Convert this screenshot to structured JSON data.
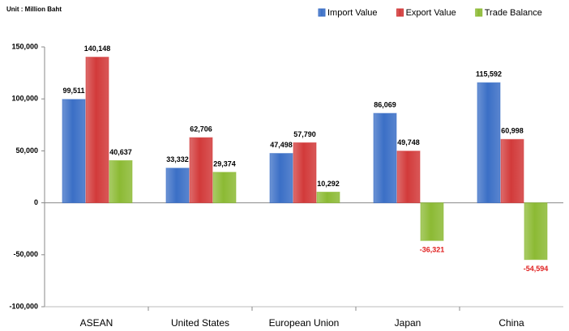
{
  "chart_data": {
    "type": "bar",
    "subtitle": "Unit : Million  Baht",
    "categories": [
      "ASEAN",
      "United States",
      "European Union",
      "Japan",
      "China"
    ],
    "series": [
      {
        "name": "Import Value",
        "color": "#3b6fc6",
        "values": [
          99511,
          33332,
          47498,
          86069,
          115592
        ],
        "value_labels": [
          "99,511",
          "33,332",
          "47,498",
          "86,069",
          "115,592"
        ]
      },
      {
        "name": "Export Value",
        "color": "#d23a3a",
        "values": [
          140148,
          62706,
          57790,
          49748,
          60998
        ],
        "value_labels": [
          "140,148",
          "62,706",
          "57,790",
          "49,748",
          "60,998"
        ]
      },
      {
        "name": "Trade Balance",
        "color": "#8cba34",
        "values": [
          40637,
          29374,
          10292,
          -36321,
          -54594
        ],
        "value_labels": [
          "40,637",
          "29,374",
          "10,292",
          "-36,321",
          "-54,594"
        ]
      }
    ],
    "ylim": [
      -100000,
      150000
    ],
    "yticks": [
      {
        "value": -100000,
        "label": "-100,000"
      },
      {
        "value": -50000,
        "label": "-50,000"
      },
      0,
      {
        "value": 50000,
        "label": "50,000"
      },
      {
        "value": 100000,
        "label": "100,000"
      },
      {
        "value": 150000,
        "label": "150,000"
      }
    ],
    "legend": "top-right"
  }
}
